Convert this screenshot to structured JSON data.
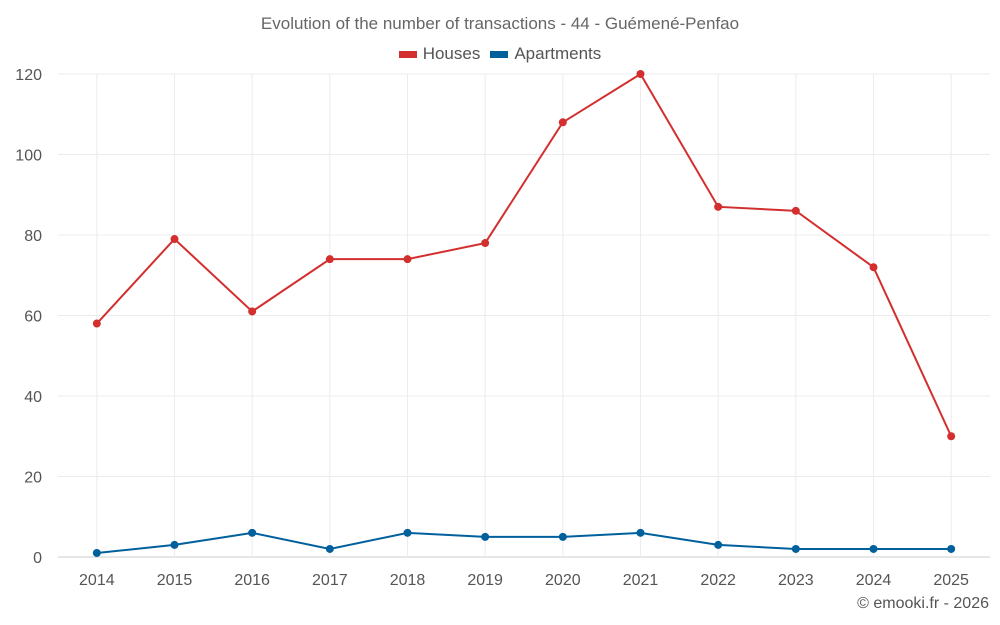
{
  "chart_data": {
    "type": "line",
    "title": "Evolution of the number of transactions - 44 - Guémené-Penfao",
    "categories": [
      "2014",
      "2015",
      "2016",
      "2017",
      "2018",
      "2019",
      "2020",
      "2021",
      "2022",
      "2023",
      "2024",
      "2025"
    ],
    "series": [
      {
        "name": "Houses",
        "color": "#d32f2f",
        "values": [
          58,
          79,
          61,
          74,
          74,
          78,
          108,
          120,
          87,
          86,
          72,
          30
        ]
      },
      {
        "name": "Apartments",
        "color": "#00609c",
        "values": [
          1,
          3,
          6,
          2,
          6,
          5,
          5,
          6,
          3,
          2,
          2,
          2
        ]
      }
    ],
    "yticks": [
      0,
      20,
      40,
      60,
      80,
      100,
      120
    ],
    "ylim": [
      0,
      120
    ],
    "xlabel": "",
    "ylabel": "",
    "grid": true,
    "legend": "top-center"
  },
  "footer": "© emooki.fr - 2026"
}
